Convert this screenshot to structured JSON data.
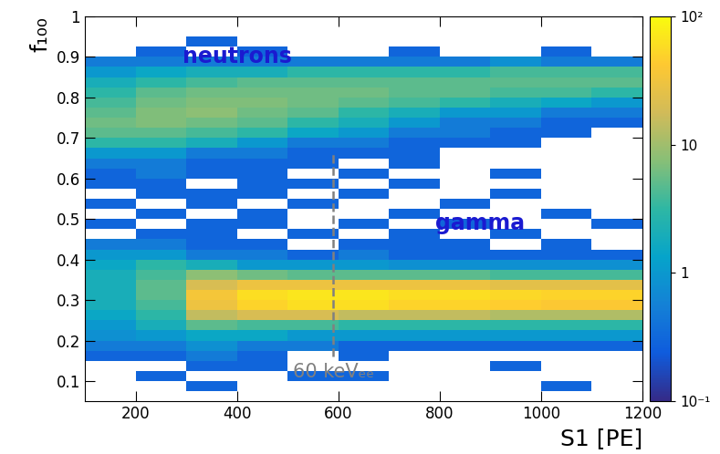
{
  "chart_data": {
    "type": "heatmap",
    "x_label": "S1 [PE]",
    "y_label": "f₁₀₀",
    "xlim": [
      100,
      1200
    ],
    "xticks": [
      200,
      400,
      600,
      800,
      1000,
      1200
    ],
    "ylim": [
      0.05,
      1
    ],
    "yticks": [
      0.1,
      0.2,
      0.3,
      0.4,
      0.5,
      0.6,
      0.7,
      0.8,
      0.9,
      1
    ],
    "log": true,
    "x_bins": [
      100,
      200,
      300,
      400,
      500,
      600,
      700,
      800,
      900,
      1000,
      1100,
      1200
    ],
    "y_bins": [
      0.05,
      0.075,
      0.1,
      0.125,
      0.15,
      0.175,
      0.2,
      0.225,
      0.25,
      0.275,
      0.3,
      0.325,
      0.35,
      0.375,
      0.4,
      0.425,
      0.45,
      0.475,
      0.5,
      0.525,
      0.55,
      0.575,
      0.6,
      0.625,
      0.65,
      0.675,
      0.7,
      0.725,
      0.75,
      0.775,
      0.8,
      0.825,
      0.85,
      0.875,
      0.9,
      0.925,
      0.95,
      0.975,
      1.0
    ],
    "cells": [
      [
        null,
        null,
        null,
        null,
        null,
        null,
        null,
        null,
        null,
        null,
        null
      ],
      [
        null,
        null,
        0.3,
        null,
        null,
        null,
        null,
        null,
        null,
        0.3,
        null
      ],
      [
        null,
        0.3,
        null,
        null,
        0.3,
        0.3,
        null,
        null,
        null,
        null,
        null
      ],
      [
        null,
        null,
        0.3,
        0.3,
        null,
        null,
        null,
        null,
        0.3,
        null,
        null
      ],
      [
        0.3,
        0.3,
        0.5,
        0.3,
        null,
        0.3,
        null,
        null,
        null,
        null,
        null
      ],
      [
        0.5,
        0.5,
        0.8,
        0.5,
        0.5,
        0.3,
        0.3,
        0.3,
        0.3,
        0.3,
        0.3
      ],
      [
        0.8,
        1,
        1.5,
        1.5,
        1,
        1,
        1,
        1,
        1,
        1,
        1
      ],
      [
        1,
        2,
        5,
        4,
        4,
        3,
        3,
        3,
        3,
        3,
        3
      ],
      [
        1.5,
        3,
        15,
        20,
        20,
        15,
        15,
        15,
        12,
        12,
        12
      ],
      [
        2,
        4,
        30,
        50,
        60,
        60,
        50,
        50,
        45,
        40,
        40
      ],
      [
        2,
        5,
        35,
        60,
        70,
        70,
        60,
        60,
        55,
        50,
        50
      ],
      [
        2,
        5,
        20,
        30,
        30,
        30,
        30,
        30,
        25,
        25,
        25
      ],
      [
        2,
        4,
        8,
        6,
        5,
        5,
        5,
        5,
        4,
        4,
        4
      ],
      [
        1.5,
        3,
        2,
        1,
        1,
        1,
        0.8,
        0.8,
        0.8,
        0.8,
        0.8
      ],
      [
        1,
        1,
        0.5,
        0.5,
        0.3,
        0.5,
        0.3,
        0.3,
        0.3,
        0.3,
        0.3
      ],
      [
        0.5,
        0.5,
        0.3,
        0.3,
        null,
        0.3,
        0.3,
        0.3,
        null,
        0.3,
        null
      ],
      [
        null,
        0.3,
        0.3,
        null,
        0.3,
        null,
        0.3,
        null,
        0.3,
        null,
        null
      ],
      [
        0.3,
        null,
        0.3,
        0.3,
        null,
        0.3,
        null,
        0.3,
        null,
        null,
        0.3
      ],
      [
        null,
        0.3,
        null,
        0.3,
        null,
        null,
        0.3,
        null,
        null,
        0.3,
        null
      ],
      [
        0.3,
        null,
        0.3,
        null,
        0.3,
        null,
        null,
        0.3,
        null,
        null,
        null
      ],
      [
        null,
        0.3,
        0.3,
        0.3,
        null,
        0.3,
        null,
        null,
        0.3,
        null,
        null
      ],
      [
        0.3,
        0.3,
        null,
        0.3,
        0.3,
        null,
        0.3,
        null,
        null,
        null,
        null
      ],
      [
        0.3,
        0.5,
        0.3,
        0.3,
        null,
        0.3,
        null,
        null,
        0.3,
        null,
        null
      ],
      [
        0.5,
        0.5,
        0.3,
        0.3,
        0.3,
        null,
        0.3,
        null,
        null,
        null,
        null
      ],
      [
        1,
        1,
        0.5,
        0.5,
        0.3,
        0.3,
        0.3,
        null,
        null,
        null,
        null
      ],
      [
        3,
        3,
        2,
        1,
        0.5,
        0.5,
        0.3,
        0.3,
        0.3,
        null,
        null
      ],
      [
        5,
        5,
        4,
        3,
        1.5,
        1,
        0.5,
        0.5,
        0.3,
        0.3,
        null
      ],
      [
        6,
        7,
        6,
        5,
        3,
        2,
        1,
        0.5,
        0.5,
        0.3,
        0.3
      ],
      [
        5,
        7,
        8,
        6,
        5,
        3,
        2,
        1,
        1,
        0.5,
        0.5
      ],
      [
        4,
        6,
        7,
        7,
        6,
        5,
        4,
        3,
        2,
        1.5,
        1
      ],
      [
        3,
        5,
        6,
        6,
        6,
        6,
        5,
        5,
        4,
        4,
        3
      ],
      [
        2,
        3,
        4,
        5,
        5,
        5,
        5,
        5,
        5,
        5,
        5
      ],
      [
        1,
        1.5,
        2,
        2,
        3,
        3,
        3,
        3,
        4,
        4,
        4
      ],
      [
        0.5,
        0.5,
        0.5,
        0.5,
        0.5,
        0.5,
        0.5,
        0.5,
        0.8,
        0.5,
        0.5
      ],
      [
        null,
        0.3,
        null,
        0.3,
        null,
        null,
        0.3,
        null,
        null,
        0.3,
        null
      ],
      [
        null,
        null,
        0.3,
        null,
        null,
        null,
        null,
        null,
        null,
        null,
        null
      ],
      [
        null,
        null,
        null,
        null,
        null,
        null,
        null,
        null,
        null,
        null,
        null
      ],
      [
        null,
        null,
        null,
        null,
        null,
        null,
        null,
        null,
        null,
        null,
        null
      ]
    ],
    "colorbar": {
      "lim": [
        0.1,
        100
      ],
      "ticks": [
        {
          "value": 0.1,
          "label": "10⁻¹"
        },
        1,
        10,
        {
          "value": 100,
          "label": "10²"
        }
      ]
    },
    "annotations": [
      {
        "text": "neutrons",
        "x": 400,
        "y": 0.9,
        "color": "#1a1ad0"
      },
      {
        "text": "gamma",
        "x": 880,
        "y": 0.49,
        "color": "#1a1ad0"
      }
    ],
    "threshold": {
      "x": 590,
      "y": [
        0.16,
        0.66
      ],
      "label": "60 keVₑₑ",
      "color": "#808080",
      "line_style": "dashed"
    }
  }
}
